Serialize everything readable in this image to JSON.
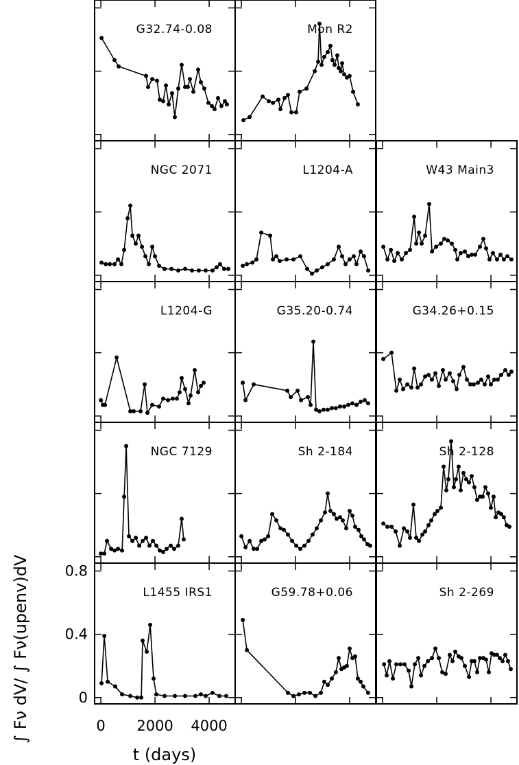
{
  "chart_data": [
    {
      "type": "line",
      "title": "G32.74-0.08",
      "color": "#000000",
      "xlim": [
        -230,
        4960
      ],
      "ylim": [
        -0.04,
        0.85
      ],
      "x": [
        25,
        506,
        658,
        1670,
        1746,
        1898,
        2075,
        2176,
        2302,
        2404,
        2505,
        2631,
        2732,
        2859,
        2985,
        3112,
        3213,
        3289,
        3416,
        3593,
        3694,
        3820,
        3972,
        4099,
        4200,
        4327,
        4453,
        4580,
        4655
      ],
      "values": [
        0.61,
        0.47,
        0.43,
        0.37,
        0.3,
        0.35,
        0.34,
        0.22,
        0.21,
        0.31,
        0.19,
        0.26,
        0.11,
        0.29,
        0.44,
        0.3,
        0.3,
        0.35,
        0.27,
        0.41,
        0.33,
        0.29,
        0.2,
        0.18,
        0.16,
        0.23,
        0.18,
        0.21,
        0.19
      ]
    },
    {
      "type": "line",
      "title": "Mon R2",
      "color": "#000000",
      "xlim": [
        -230,
        4960
      ],
      "ylim": [
        -0.04,
        0.85
      ],
      "x": [
        76,
        304,
        784,
        1012,
        1164,
        1366,
        1442,
        1594,
        1720,
        1847,
        2024,
        2150,
        2404,
        2707,
        2834,
        2884,
        2960,
        3061,
        3188,
        3289,
        3365,
        3441,
        3542,
        3593,
        3669,
        3719,
        3795,
        3896,
        3997,
        4124,
        4301
      ],
      "values": [
        0.09,
        0.11,
        0.24,
        0.21,
        0.2,
        0.22,
        0.16,
        0.23,
        0.25,
        0.14,
        0.14,
        0.27,
        0.29,
        0.4,
        0.46,
        0.7,
        0.44,
        0.49,
        0.52,
        0.56,
        0.47,
        0.44,
        0.5,
        0.42,
        0.4,
        0.45,
        0.38,
        0.36,
        0.37,
        0.27,
        0.19
      ]
    },
    {
      "type": "line",
      "title": "NGC 2071",
      "color": "#000000",
      "xlim": [
        -230,
        4960
      ],
      "ylim": [
        -0.04,
        0.85
      ],
      "x": [
        25,
        177,
        329,
        506,
        633,
        759,
        860,
        987,
        1088,
        1164,
        1290,
        1392,
        1518,
        1645,
        1771,
        1898,
        1999,
        2150,
        2353,
        2606,
        2859,
        3112,
        3365,
        3618,
        3871,
        4124,
        4276,
        4402,
        4554,
        4706
      ],
      "values": [
        0.08,
        0.07,
        0.07,
        0.07,
        0.1,
        0.07,
        0.16,
        0.36,
        0.44,
        0.25,
        0.2,
        0.25,
        0.18,
        0.12,
        0.07,
        0.18,
        0.12,
        0.06,
        0.04,
        0.04,
        0.03,
        0.04,
        0.03,
        0.03,
        0.03,
        0.03,
        0.05,
        0.07,
        0.04,
        0.04
      ]
    },
    {
      "type": "line",
      "title": "L1204-A",
      "color": "#000000",
      "xlim": [
        -230,
        4960
      ],
      "ylim": [
        -0.04,
        0.85
      ],
      "x": [
        51,
        202,
        405,
        557,
        734,
        1063,
        1164,
        1290,
        1417,
        1670,
        1923,
        2176,
        2429,
        2606,
        2783,
        2985,
        3188,
        3416,
        3593,
        3719,
        3846,
        3997,
        4149,
        4250,
        4402,
        4529,
        4681
      ],
      "values": [
        0.06,
        0.07,
        0.08,
        0.1,
        0.27,
        0.25,
        0.1,
        0.12,
        0.09,
        0.1,
        0.1,
        0.12,
        0.04,
        0.01,
        0.03,
        0.05,
        0.07,
        0.1,
        0.18,
        0.12,
        0.07,
        0.1,
        0.12,
        0.07,
        0.15,
        0.12,
        0.03
      ]
    },
    {
      "type": "line",
      "title": "W43 Main3",
      "color": "#000000",
      "xlim": [
        -230,
        4960
      ],
      "ylim": [
        -0.04,
        0.85
      ],
      "x": [
        25,
        177,
        304,
        430,
        557,
        708,
        860,
        1012,
        1164,
        1240,
        1341,
        1442,
        1569,
        1720,
        1822,
        1973,
        2150,
        2277,
        2404,
        2555,
        2682,
        2758,
        2884,
        3036,
        3163,
        3289,
        3416,
        3593,
        3719,
        3820,
        3947,
        4073,
        4225,
        4352,
        4478,
        4605,
        4756
      ],
      "values": [
        0.18,
        0.1,
        0.16,
        0.09,
        0.14,
        0.1,
        0.14,
        0.16,
        0.37,
        0.2,
        0.27,
        0.2,
        0.25,
        0.45,
        0.15,
        0.18,
        0.2,
        0.23,
        0.22,
        0.2,
        0.16,
        0.1,
        0.14,
        0.15,
        0.12,
        0.13,
        0.13,
        0.18,
        0.23,
        0.17,
        0.1,
        0.14,
        0.1,
        0.13,
        0.1,
        0.12,
        0.1
      ]
    },
    {
      "type": "line",
      "title": "L1204-G",
      "color": "#000000",
      "xlim": [
        -230,
        4960
      ],
      "ylim": [
        -0.04,
        0.85
      ],
      "x": [
        0,
        76,
        152,
        582,
        1088,
        1214,
        1467,
        1619,
        1720,
        1898,
        2150,
        2302,
        2479,
        2657,
        2808,
        2910,
        2985,
        3112,
        3238,
        3314,
        3466,
        3593,
        3694,
        3795
      ],
      "values": [
        0.1,
        0.07,
        0.07,
        0.37,
        0.03,
        0.03,
        0.03,
        0.2,
        0.02,
        0.07,
        0.06,
        0.11,
        0.1,
        0.11,
        0.11,
        0.15,
        0.24,
        0.17,
        0.08,
        0.13,
        0.29,
        0.15,
        0.19,
        0.21
      ]
    },
    {
      "type": "line",
      "title": "G35.20-0.74",
      "color": "#000000",
      "xlim": [
        -230,
        4960
      ],
      "ylim": [
        -0.04,
        0.85
      ],
      "x": [
        51,
        152,
        455,
        1695,
        1822,
        2075,
        2201,
        2454,
        2555,
        2657,
        2758,
        2884,
        3036,
        3188,
        3340,
        3491,
        3643,
        3795,
        3947,
        4099,
        4250,
        4402,
        4554,
        4681
      ],
      "values": [
        0.21,
        0.1,
        0.2,
        0.16,
        0.12,
        0.16,
        0.1,
        0.12,
        0.07,
        0.47,
        0.04,
        0.03,
        0.04,
        0.04,
        0.05,
        0.05,
        0.06,
        0.06,
        0.07,
        0.08,
        0.07,
        0.09,
        0.1,
        0.08
      ]
    },
    {
      "type": "line",
      "title": "G34.26+0.15",
      "color": "#000000",
      "xlim": [
        -230,
        4960
      ],
      "ylim": [
        -0.04,
        0.85
      ],
      "x": [
        25,
        329,
        506,
        633,
        759,
        911,
        1063,
        1164,
        1290,
        1417,
        1569,
        1695,
        1822,
        1948,
        2075,
        2226,
        2328,
        2479,
        2606,
        2732,
        2834,
        2985,
        3112,
        3238,
        3365,
        3517,
        3643,
        3770,
        3896,
        3997,
        4124,
        4250,
        4377,
        4529,
        4655,
        4756
      ],
      "values": [
        0.36,
        0.4,
        0.16,
        0.23,
        0.17,
        0.2,
        0.18,
        0.3,
        0.18,
        0.2,
        0.25,
        0.26,
        0.23,
        0.27,
        0.19,
        0.29,
        0.23,
        0.27,
        0.22,
        0.17,
        0.26,
        0.31,
        0.23,
        0.2,
        0.2,
        0.21,
        0.23,
        0.2,
        0.25,
        0.2,
        0.23,
        0.23,
        0.26,
        0.29,
        0.26,
        0.28
      ]
    },
    {
      "type": "line",
      "title": "NGC 7129",
      "color": "#000000",
      "xlim": [
        -230,
        4960
      ],
      "ylim": [
        -0.04,
        0.85
      ],
      "x": [
        0,
        127,
        228,
        380,
        506,
        633,
        784,
        860,
        936,
        1037,
        1164,
        1290,
        1417,
        1543,
        1670,
        1796,
        1923,
        2049,
        2176,
        2302,
        2429,
        2581,
        2707,
        2859,
        2985,
        3061
      ],
      "values": [
        0.02,
        0.02,
        0.1,
        0.05,
        0.04,
        0.05,
        0.04,
        0.38,
        0.7,
        0.13,
        0.1,
        0.12,
        0.07,
        0.1,
        0.12,
        0.07,
        0.1,
        0.07,
        0.04,
        0.03,
        0.05,
        0.07,
        0.05,
        0.07,
        0.24,
        0.11
      ]
    },
    {
      "type": "line",
      "title": "Sh 2-184",
      "color": "#000000",
      "xlim": [
        -230,
        4960
      ],
      "ylim": [
        -0.04,
        0.85
      ],
      "x": [
        0,
        152,
        304,
        455,
        582,
        734,
        860,
        987,
        1138,
        1290,
        1442,
        1569,
        1720,
        1872,
        2024,
        2176,
        2328,
        2479,
        2631,
        2783,
        2935,
        3087,
        3188,
        3289,
        3416,
        3517,
        3643,
        3744,
        3871,
        3997,
        4099,
        4200,
        4326,
        4428,
        4529,
        4655,
        4756
      ],
      "values": [
        0.13,
        0.06,
        0.1,
        0.05,
        0.05,
        0.1,
        0.11,
        0.13,
        0.27,
        0.23,
        0.18,
        0.17,
        0.14,
        0.1,
        0.07,
        0.05,
        0.07,
        0.1,
        0.14,
        0.18,
        0.23,
        0.28,
        0.4,
        0.29,
        0.27,
        0.24,
        0.25,
        0.23,
        0.18,
        0.29,
        0.26,
        0.19,
        0.17,
        0.13,
        0.11,
        0.08,
        0.07
      ]
    },
    {
      "type": "line",
      "title": "Sh 2-128",
      "color": "#000000",
      "xlim": [
        -230,
        4960
      ],
      "ylim": [
        -0.04,
        0.85
      ],
      "x": [
        25,
        177,
        329,
        481,
        633,
        784,
        911,
        1012,
        1138,
        1240,
        1341,
        1467,
        1569,
        1695,
        1796,
        1923,
        2024,
        2150,
        2252,
        2353,
        2429,
        2530,
        2631,
        2707,
        2808,
        2884,
        2985,
        3087,
        3188,
        3289,
        3390,
        3491,
        3593,
        3694,
        3795,
        3896,
        3997,
        4099,
        4174,
        4276,
        4377,
        4478,
        4579,
        4681
      ],
      "values": [
        0.21,
        0.19,
        0.19,
        0.16,
        0.07,
        0.18,
        0.16,
        0.12,
        0.33,
        0.12,
        0.1,
        0.14,
        0.16,
        0.2,
        0.23,
        0.27,
        0.29,
        0.31,
        0.57,
        0.42,
        0.49,
        0.73,
        0.44,
        0.49,
        0.57,
        0.42,
        0.53,
        0.49,
        0.47,
        0.51,
        0.44,
        0.36,
        0.38,
        0.38,
        0.44,
        0.4,
        0.31,
        0.38,
        0.25,
        0.28,
        0.27,
        0.25,
        0.2,
        0.19
      ]
    },
    {
      "type": "line",
      "title": "L1455 IRS1",
      "color": "#000000",
      "xlim": [
        -230,
        4960
      ],
      "ylim": [
        -0.04,
        0.85
      ],
      "xticks": [
        0,
        2000,
        4000
      ],
      "yticks": [
        0,
        0.4,
        0.8
      ],
      "xlabel": "t (days)",
      "ylabel": "∫ Fν dV/ ∫ Fν(upenv)dV",
      "x": [
        25,
        127,
        253,
        531,
        784,
        1088,
        1341,
        1493,
        1543,
        1695,
        1822,
        1948,
        2049,
        2353,
        2732,
        3112,
        3491,
        3694,
        3871,
        4124,
        4377,
        4630
      ],
      "values": [
        0.09,
        0.39,
        0.1,
        0.07,
        0.02,
        0.01,
        0.0,
        0.0,
        0.36,
        0.29,
        0.46,
        0.12,
        0.02,
        0.01,
        0.01,
        0.01,
        0.01,
        0.02,
        0.01,
        0.03,
        0.01,
        0.01
      ]
    },
    {
      "type": "line",
      "title": "G59.78+0.06",
      "color": "#000000",
      "xlim": [
        -230,
        4960
      ],
      "ylim": [
        -0.04,
        0.85
      ],
      "x": [
        51,
        202,
        1720,
        1923,
        2125,
        2328,
        2530,
        2732,
        2935,
        3061,
        3188,
        3340,
        3491,
        3593,
        3694,
        3795,
        3896,
        3997,
        4099,
        4200,
        4301,
        4402,
        4503,
        4681
      ],
      "values": [
        0.49,
        0.3,
        0.03,
        0.01,
        0.02,
        0.03,
        0.03,
        0.01,
        0.03,
        0.1,
        0.08,
        0.12,
        0.16,
        0.25,
        0.18,
        0.19,
        0.2,
        0.31,
        0.25,
        0.26,
        0.12,
        0.1,
        0.07,
        0.03
      ]
    },
    {
      "type": "line",
      "title": "Sh 2-269",
      "color": "#000000",
      "xlim": [
        -230,
        4960
      ],
      "ylim": [
        -0.04,
        0.85
      ],
      "x": [
        51,
        152,
        253,
        380,
        506,
        658,
        810,
        961,
        1063,
        1189,
        1316,
        1417,
        1543,
        1670,
        1822,
        1948,
        2075,
        2201,
        2328,
        2479,
        2581,
        2682,
        2808,
        2910,
        3036,
        3188,
        3289,
        3390,
        3491,
        3593,
        3719,
        3820,
        3922,
        4023,
        4124,
        4225,
        4326,
        4428,
        4529,
        4630,
        4731
      ],
      "values": [
        0.21,
        0.14,
        0.23,
        0.12,
        0.21,
        0.21,
        0.21,
        0.17,
        0.07,
        0.21,
        0.25,
        0.14,
        0.2,
        0.23,
        0.25,
        0.31,
        0.25,
        0.16,
        0.15,
        0.27,
        0.23,
        0.29,
        0.26,
        0.25,
        0.2,
        0.13,
        0.23,
        0.23,
        0.16,
        0.25,
        0.25,
        0.24,
        0.16,
        0.28,
        0.27,
        0.27,
        0.25,
        0.23,
        0.27,
        0.23,
        0.18
      ]
    }
  ]
}
